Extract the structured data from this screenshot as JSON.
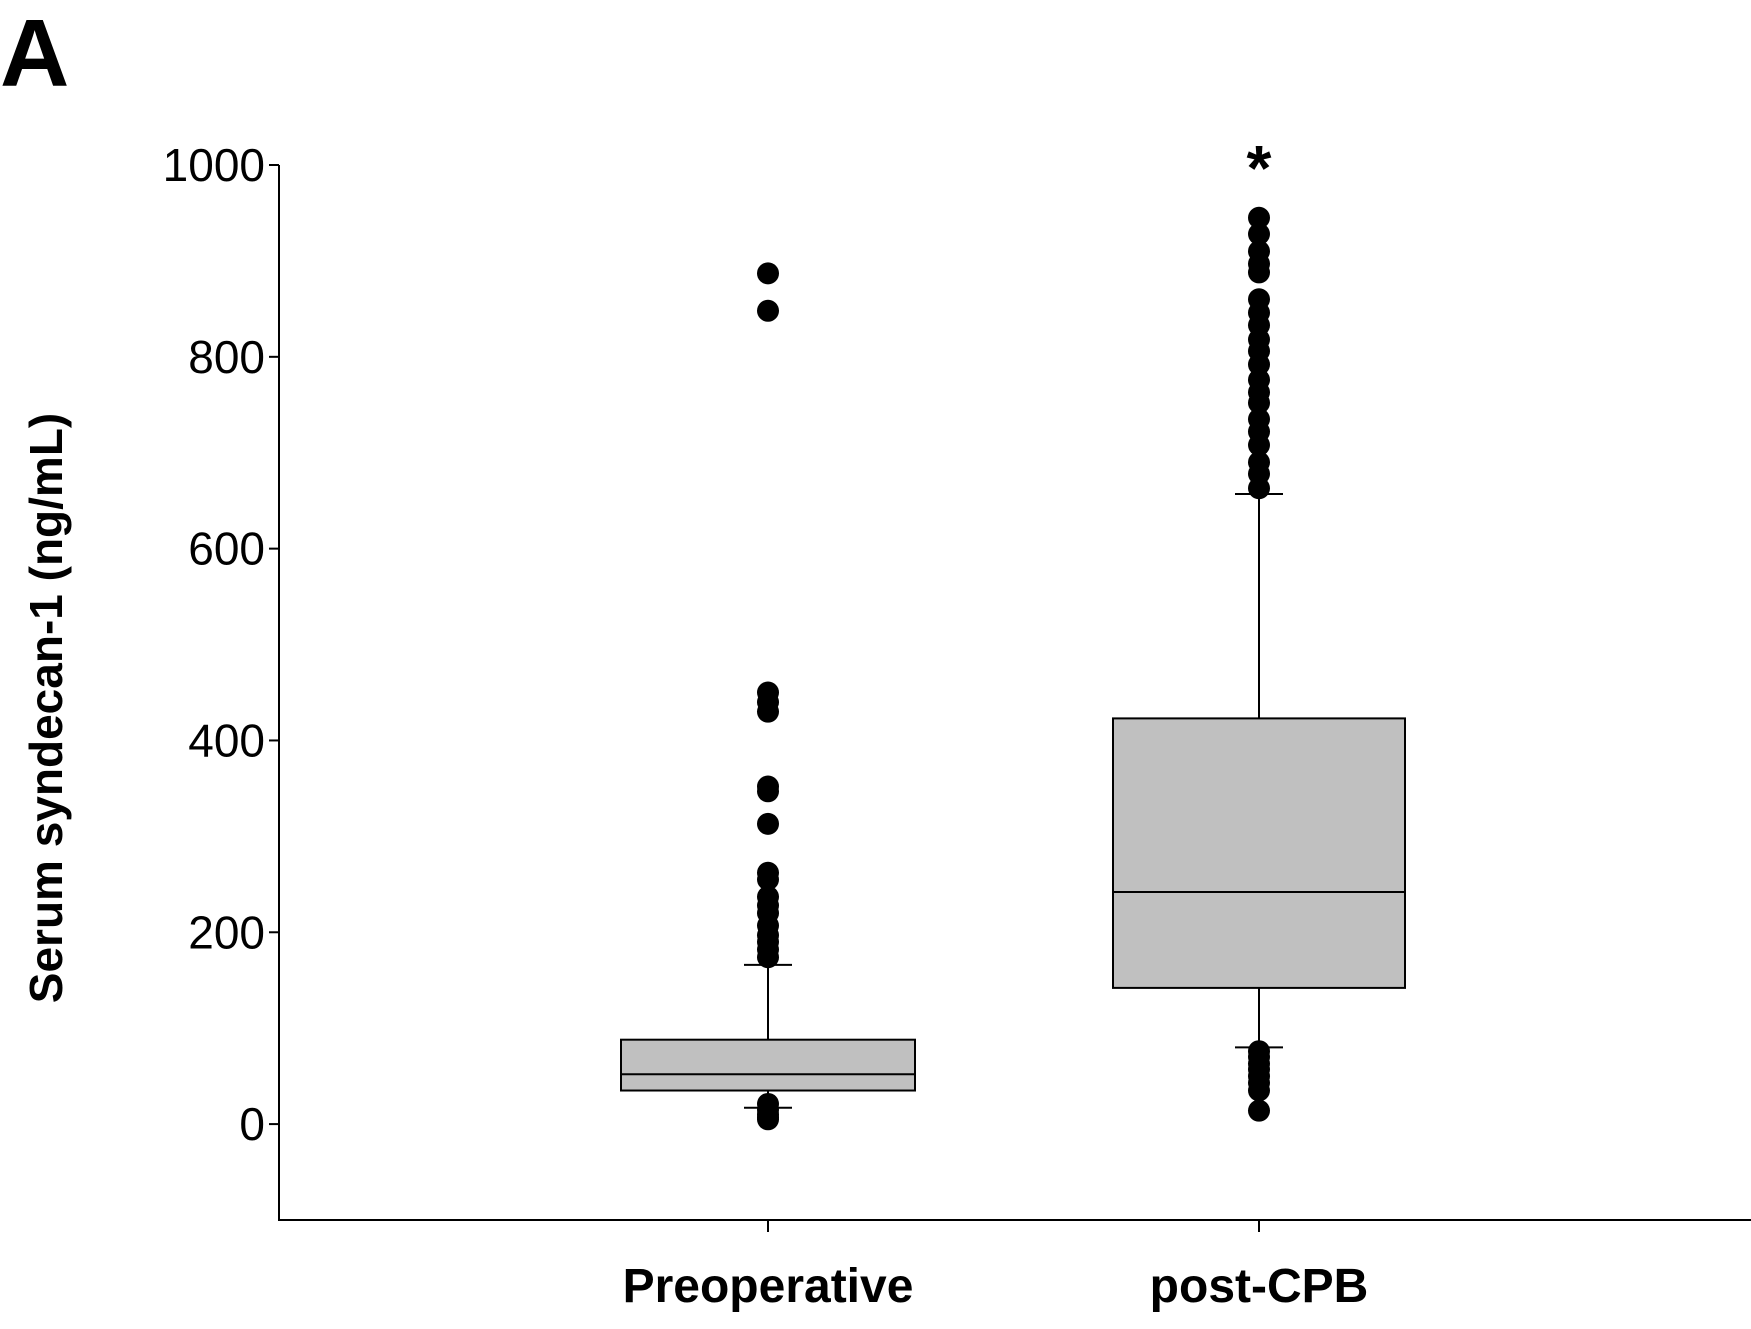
{
  "panel_label": "A",
  "chart_data": {
    "type": "box",
    "title": "",
    "xlabel": "",
    "ylabel": "Serum syndecan-1 (ng/mL)",
    "ylim": [
      -100,
      1000
    ],
    "yticks": [
      0,
      200,
      400,
      600,
      800,
      1000
    ],
    "ytick_labels": [
      "0",
      "200",
      "400",
      "600",
      "800",
      "1000"
    ],
    "categories": [
      "Preoperative",
      "post-CPB"
    ],
    "grid": false,
    "legend": "none",
    "colors": {
      "box_fill": "#c0c0c0",
      "line": "#000000",
      "outlier": "#000000"
    },
    "boxes": [
      {
        "category": "Preoperative",
        "whisker_low": 17,
        "q1": 35,
        "median": 52,
        "q3": 88,
        "whisker_high": 166,
        "annotation": "",
        "outliers": [
          887,
          848,
          450,
          440,
          430,
          352,
          347,
          313,
          262,
          255,
          237,
          228,
          220,
          207,
          197,
          190,
          182,
          174,
          21,
          15,
          10,
          7,
          5
        ]
      },
      {
        "category": "post-CPB",
        "whisker_low": 80,
        "q1": 142,
        "median": 242,
        "q3": 423,
        "whisker_high": 657,
        "annotation": "*",
        "outliers": [
          945,
          928,
          910,
          897,
          888,
          860,
          846,
          833,
          818,
          806,
          792,
          776,
          763,
          752,
          735,
          722,
          708,
          690,
          678,
          663,
          76,
          70,
          63,
          57,
          50,
          43,
          35,
          14
        ]
      }
    ]
  }
}
